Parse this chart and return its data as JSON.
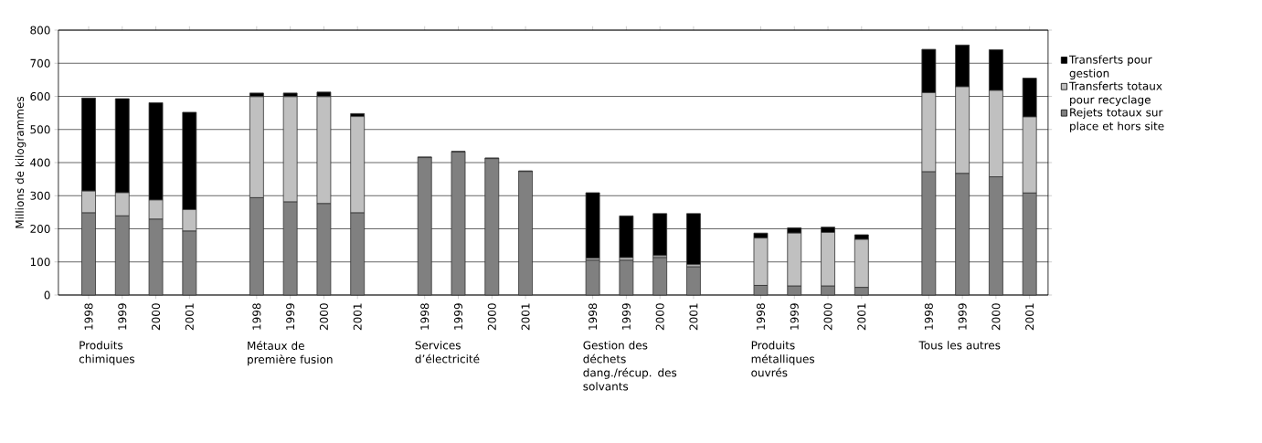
{
  "chart_data": {
    "type": "bar",
    "stacked": true,
    "ylabel": "Millions de kilogrammes",
    "categories": [
      "1998",
      "1999",
      "2000",
      "2001",
      null,
      "1998",
      "1999",
      "2000",
      "2001",
      null,
      "1998",
      "1999",
      "2000",
      "2001",
      null,
      "1998",
      "1999",
      "2000",
      "2001",
      null,
      "1998",
      "1999",
      "2000",
      "2001",
      null,
      "1998",
      "1999",
      "2000",
      "2001"
    ],
    "series": [
      {
        "name": "Rejets totaux sur place et hors site",
        "color": "#808080",
        "values": [
          248,
          239,
          229,
          193,
          null,
          294,
          281,
          276,
          248,
          null,
          415,
          432,
          412,
          373,
          null,
          105,
          105,
          113,
          85,
          null,
          29,
          27,
          27,
          23,
          null,
          372,
          367,
          357,
          308
        ]
      },
      {
        "name": "Transferts totaux pour recyclage",
        "color": "#c0c0c0",
        "values": [
          66,
          70,
          58,
          65,
          null,
          305,
          318,
          323,
          291,
          null,
          0,
          0,
          0,
          0,
          null,
          6,
          8,
          6,
          7,
          null,
          143,
          160,
          162,
          145,
          null,
          239,
          262,
          261,
          230
        ]
      },
      {
        "name": "Transferts pour gestion",
        "color": "#000000",
        "values": [
          281,
          284,
          294,
          294,
          null,
          11,
          11,
          14,
          9,
          null,
          2,
          2,
          2,
          2,
          null,
          198,
          126,
          127,
          154,
          null,
          15,
          16,
          16,
          14,
          null,
          131,
          126,
          123,
          117
        ]
      }
    ],
    "annotations": [
      "Produits chimiques",
      "Métaux de première fusion",
      "Services d’électricité",
      "Gestion des déchets dang./récup. des solvants",
      "Produits métalliques ouvrés",
      "Tous les autres"
    ],
    "ylim": [
      0,
      800
    ],
    "yticks": [
      0,
      100,
      200,
      300,
      400,
      500,
      600,
      700,
      800
    ],
    "grid": "y",
    "legend": "right"
  }
}
